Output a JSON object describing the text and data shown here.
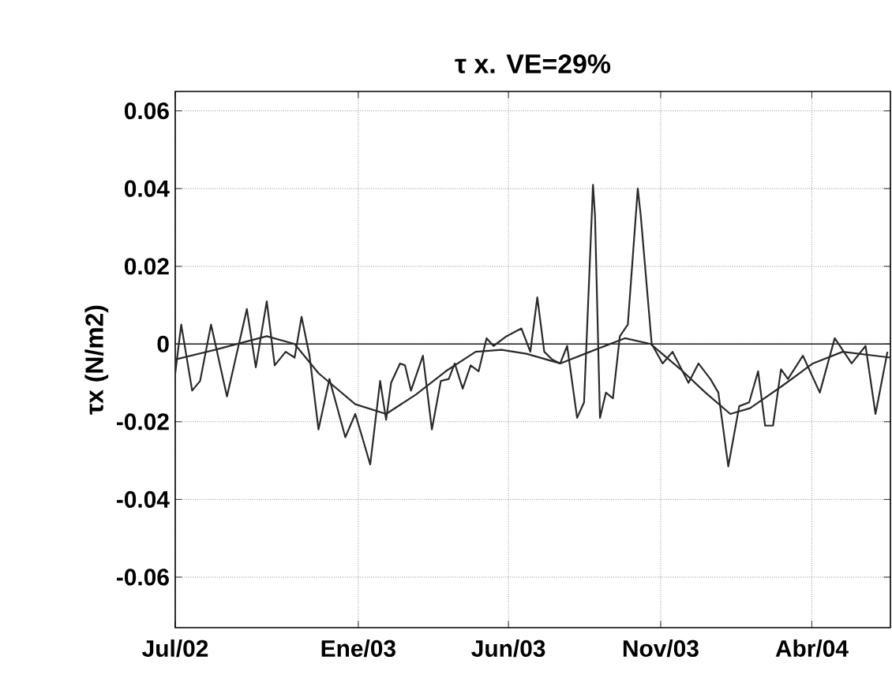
{
  "chart_data": {
    "type": "line",
    "title": "τ x. VE=29%",
    "ylabel": "τx (N/m2)",
    "xlim": [
      "2002-07-01",
      "2004-06-19"
    ],
    "ylim": [
      -0.073,
      0.065
    ],
    "xticks": [
      {
        "value": "2002-07-01",
        "label": "Jul/02"
      },
      {
        "value": "2003-01-01",
        "label": "Ene/03"
      },
      {
        "value": "2003-06-01",
        "label": "Jun/03"
      },
      {
        "value": "2003-11-01",
        "label": "Nov/03"
      },
      {
        "value": "2004-04-01",
        "label": "Abr/04"
      }
    ],
    "yticks": [
      -0.06,
      -0.04,
      -0.02,
      0,
      0.02,
      0.04,
      0.06
    ],
    "grid": true,
    "ref_lines": [
      {
        "axis": "y",
        "value": 0,
        "color": "#1a1a1a",
        "line_style": "solid"
      }
    ],
    "series": [
      {
        "color": "#2a2a2a",
        "x": [
          "2002-07-01",
          "2002-07-07",
          "2002-07-18",
          "2002-07-26",
          "2002-08-06",
          "2002-08-22",
          "2002-09-11",
          "2002-09-20",
          "2002-10-01",
          "2002-10-09",
          "2002-10-20",
          "2002-10-29",
          "2002-11-05",
          "2002-11-13",
          "2002-11-22",
          "2002-12-03",
          "2002-12-19",
          "2002-12-29",
          "2003-01-05",
          "2003-01-13",
          "2003-01-23",
          "2003-01-29",
          "2003-02-03",
          "2003-02-12",
          "2003-02-17",
          "2003-02-23",
          "2003-03-07",
          "2003-03-16",
          "2003-03-25",
          "2003-04-02",
          "2003-04-08",
          "2003-04-16",
          "2003-04-24",
          "2003-05-02",
          "2003-05-10",
          "2003-05-17",
          "2003-05-30",
          "2003-06-14",
          "2003-06-23",
          "2003-06-30",
          "2003-07-07",
          "2003-07-15",
          "2003-07-23",
          "2003-07-30",
          "2003-08-09",
          "2003-08-16",
          "2003-08-25",
          "2003-08-27",
          "2003-09-01",
          "2003-09-07",
          "2003-09-14",
          "2003-09-21",
          "2003-09-29",
          "2003-10-09",
          "2003-10-12",
          "2003-10-23",
          "2003-11-03",
          "2003-11-13",
          "2003-11-29",
          "2003-12-09",
          "2003-12-21",
          "2003-12-29",
          "2004-01-08",
          "2004-01-19",
          "2004-01-29",
          "2004-02-07",
          "2004-02-14",
          "2004-02-22",
          "2004-03-01",
          "2004-03-08",
          "2004-03-23",
          "2004-04-09",
          "2004-04-24",
          "2004-05-11",
          "2004-05-25",
          "2004-06-04",
          "2004-06-16"
        ],
        "values": [
          -0.0075,
          0.005,
          -0.012,
          -0.0095,
          0.005,
          -0.0135,
          0.009,
          -0.006,
          0.011,
          -0.0055,
          -0.002,
          -0.0035,
          0.007,
          -0.003,
          -0.022,
          -0.009,
          -0.024,
          -0.018,
          -0.024,
          -0.031,
          -0.0095,
          -0.0195,
          -0.01,
          -0.005,
          -0.0055,
          -0.012,
          -0.003,
          -0.022,
          -0.0095,
          -0.009,
          -0.005,
          -0.0115,
          -0.0055,
          -0.007,
          0.0015,
          -0.0005,
          0.002,
          0.004,
          -0.002,
          0.012,
          -0.002,
          -0.004,
          -0.005,
          -0.0005,
          -0.019,
          -0.015,
          0.041,
          0.033,
          -0.019,
          -0.0125,
          -0.014,
          0.002,
          0.005,
          0.04,
          0.033,
          0,
          -0.005,
          -0.002,
          -0.01,
          -0.005,
          -0.009,
          -0.0125,
          -0.0315,
          -0.016,
          -0.015,
          -0.007,
          -0.021,
          -0.021,
          -0.0065,
          -0.009,
          -0.003,
          -0.0125,
          0.0015,
          -0.005,
          -0.0005,
          -0.018,
          -0.002
        ]
      },
      {
        "color": "#2a2a2a",
        "x": [
          "2002-07-01",
          "2002-08-10",
          "2002-10-01",
          "2002-10-29",
          "2002-11-22",
          "2002-12-29",
          "2003-01-29",
          "2003-02-28",
          "2003-03-30",
          "2003-04-29",
          "2003-05-25",
          "2003-06-19",
          "2003-07-23",
          "2003-08-22",
          "2003-09-26",
          "2003-10-22",
          "2003-11-21",
          "2003-12-16",
          "2004-01-10",
          "2004-01-30",
          "2004-03-01",
          "2004-04-02",
          "2004-05-02",
          "2004-06-19"
        ],
        "values": [
          -0.004,
          -0.0015,
          0.002,
          0,
          -0.0075,
          -0.0155,
          -0.018,
          -0.013,
          -0.007,
          -0.002,
          -0.0015,
          -0.0025,
          -0.005,
          -0.002,
          0.0015,
          0,
          -0.0065,
          -0.0125,
          -0.018,
          -0.0165,
          -0.011,
          -0.005,
          -0.002,
          -0.0035
        ]
      }
    ]
  }
}
